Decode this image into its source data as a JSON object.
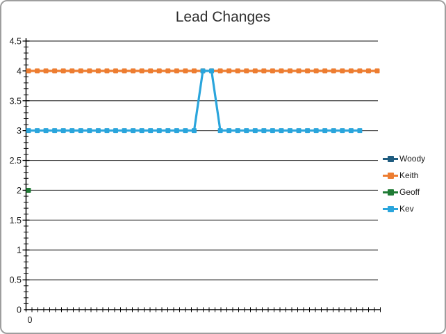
{
  "chart_data": {
    "type": "line",
    "title": "Lead Changes",
    "ylim": [
      0,
      4.5
    ],
    "y_major_step": 0.5,
    "y_minor_step": 0.1,
    "y_tick_labels": [
      "0",
      "0.5",
      "1",
      "1.5",
      "2",
      "2.5",
      "3",
      "3.5",
      "4",
      "4.5"
    ],
    "x_first_tick_label": "0",
    "grid": true,
    "legend_position": "right",
    "axis_color": "#000000",
    "gridline_color": "#3f3f3f",
    "series": [
      {
        "name": "Woody",
        "color": "#1f5c7f",
        "values": []
      },
      {
        "name": "Keith",
        "color": "#ed7d31",
        "values": [
          4,
          4,
          4,
          4,
          4,
          4,
          4,
          4,
          4,
          4,
          4,
          4,
          4,
          4,
          4,
          4,
          4,
          4,
          4,
          4,
          4,
          4,
          4,
          4,
          4,
          4,
          4,
          4,
          4,
          4,
          4,
          4,
          4,
          4,
          4,
          4,
          4,
          4,
          4,
          4,
          4
        ]
      },
      {
        "name": "Geoff",
        "color": "#1f7b34",
        "values": [
          2
        ]
      },
      {
        "name": "Kev",
        "color": "#2aa5dc",
        "values": [
          3,
          3,
          3,
          3,
          3,
          3,
          3,
          3,
          3,
          3,
          3,
          3,
          3,
          3,
          3,
          3,
          3,
          3,
          3,
          3,
          4,
          4,
          3,
          3,
          3,
          3,
          3,
          3,
          3,
          3,
          3,
          3,
          3,
          3,
          3,
          3,
          3,
          3,
          3
        ]
      }
    ]
  }
}
